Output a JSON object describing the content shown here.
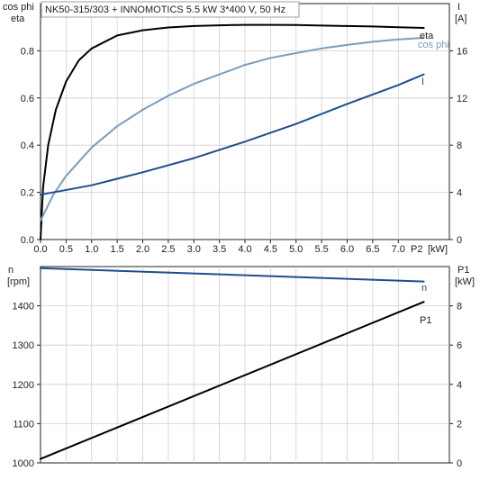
{
  "chart_data": [
    {
      "type": "line",
      "title": "NK50-315/303 + INNOMOTICS   5.5 kW   3*400 V, 50 Hz",
      "left_axis_label": [
        "cos phi",
        "eta"
      ],
      "right_axis_label": [
        "I",
        "[A]"
      ],
      "x_axis_label": [
        "P2",
        "[kW]"
      ],
      "xlim": [
        0,
        8.0
      ],
      "x_ticks": [
        0.0,
        0.5,
        1.0,
        1.5,
        2.0,
        2.5,
        3.0,
        3.5,
        4.0,
        4.5,
        5.0,
        5.5,
        6.0,
        6.5,
        7.0
      ],
      "x_tick_labels": [
        "0.0",
        "0.5",
        "1.0",
        "1.5",
        "2.0",
        "2.5",
        "3.0",
        "3.5",
        "4.0",
        "4.5",
        "5.0",
        "5.5",
        "6.0",
        "6.5",
        "7.0"
      ],
      "left_ylim": [
        0,
        1.0
      ],
      "left_ticks": [
        0.0,
        0.2,
        0.4,
        0.6,
        0.8
      ],
      "left_tick_labels": [
        "0.0",
        "0.2",
        "0.4",
        "0.6",
        "0.8"
      ],
      "right_ylim": [
        0,
        20
      ],
      "right_ticks": [
        0,
        4,
        8,
        12,
        16
      ],
      "right_tick_labels": [
        "0",
        "4",
        "8",
        "12",
        "16"
      ],
      "series": [
        {
          "name": "eta",
          "axis": "left",
          "color": "#000000",
          "x": [
            0.0,
            0.05,
            0.15,
            0.3,
            0.5,
            0.75,
            1.0,
            1.5,
            2.0,
            2.5,
            3.0,
            3.5,
            4.0,
            4.5,
            5.0,
            5.5,
            6.0,
            6.5,
            7.0,
            7.5
          ],
          "y": [
            0.0,
            0.22,
            0.4,
            0.55,
            0.67,
            0.76,
            0.81,
            0.865,
            0.887,
            0.899,
            0.905,
            0.908,
            0.91,
            0.91,
            0.909,
            0.907,
            0.905,
            0.903,
            0.9,
            0.897
          ]
        },
        {
          "name": "cos phi",
          "axis": "left",
          "color": "#7a9dbd",
          "x": [
            0.0,
            0.25,
            0.5,
            1.0,
            1.5,
            2.0,
            2.5,
            3.0,
            3.5,
            4.0,
            4.5,
            5.0,
            5.5,
            6.0,
            6.5,
            7.0,
            7.5
          ],
          "y": [
            0.08,
            0.19,
            0.27,
            0.39,
            0.48,
            0.55,
            0.61,
            0.66,
            0.7,
            0.74,
            0.77,
            0.79,
            0.81,
            0.825,
            0.838,
            0.848,
            0.855
          ]
        },
        {
          "name": "I",
          "axis": "right",
          "color": "#1f4e8c",
          "x": [
            0.0,
            1.0,
            2.0,
            3.0,
            4.0,
            5.0,
            6.0,
            7.0,
            7.5
          ],
          "y": [
            3.8,
            4.6,
            5.7,
            6.9,
            8.3,
            9.8,
            11.5,
            13.1,
            14.0
          ]
        }
      ]
    },
    {
      "type": "line",
      "left_axis_label": [
        "n",
        "[rpm]"
      ],
      "right_axis_label": [
        "P1",
        "[kW]"
      ],
      "xlim": [
        0,
        8.0
      ],
      "left_ylim": [
        1000,
        1500
      ],
      "left_ticks": [
        1000,
        1100,
        1200,
        1300,
        1400
      ],
      "left_tick_labels": [
        "1000",
        "1100",
        "1200",
        "1300",
        "1400"
      ],
      "right_ylim": [
        0,
        10
      ],
      "right_ticks": [
        0,
        2,
        4,
        6,
        8
      ],
      "right_tick_labels": [
        "0",
        "2",
        "4",
        "6",
        "8"
      ],
      "series": [
        {
          "name": "n",
          "axis": "left",
          "color": "#1f4e8c",
          "x": [
            0.0,
            7.5
          ],
          "y": [
            1496,
            1462
          ]
        },
        {
          "name": "P1",
          "axis": "right",
          "color": "#000000",
          "x": [
            0.0,
            7.5
          ],
          "y": [
            0.2,
            8.2
          ]
        }
      ]
    }
  ]
}
